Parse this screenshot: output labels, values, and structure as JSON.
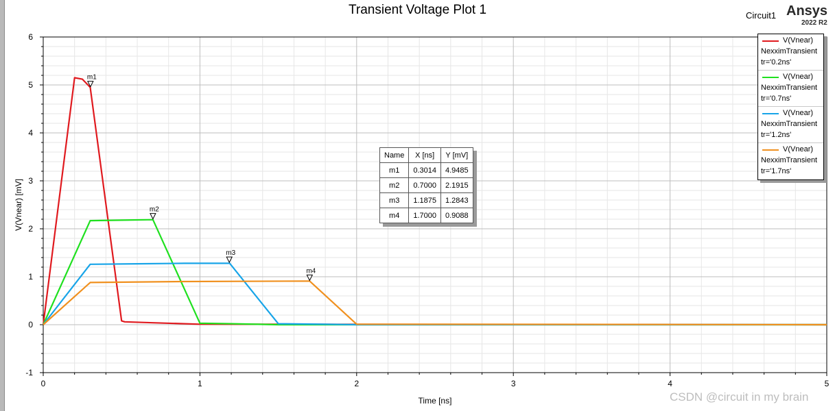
{
  "app": {
    "circuit_label": "Circuit1",
    "brand": "Ansys",
    "version": "2022 R2",
    "watermark": "CSDN @circuit in my brain"
  },
  "chart_data": {
    "type": "line",
    "title": "Transient Voltage Plot 1",
    "xlabel": "Time [ns]",
    "ylabel": "V(Vnear) [mV]",
    "xlim": [
      0,
      5
    ],
    "ylim": [
      -1,
      6
    ],
    "xticks": [
      "0",
      "1",
      "2",
      "3",
      "4",
      "5"
    ],
    "yticks": [
      "-1",
      "0",
      "1",
      "2",
      "3",
      "4",
      "5",
      "6"
    ],
    "grid": true,
    "legend_position": "top-right",
    "series": [
      {
        "legend": [
          "V(Vnear)",
          "NexximTransient",
          "tr='0.2ns'"
        ],
        "color": "#e0191e",
        "x": [
          0,
          0.2,
          0.25,
          0.3,
          0.5,
          0.52,
          0.7,
          1.0,
          5.0
        ],
        "y": [
          0,
          5.15,
          5.12,
          4.95,
          0.08,
          0.06,
          0.04,
          0.01,
          0
        ]
      },
      {
        "legend": [
          "V(Vnear)",
          "NexximTransient",
          "tr='0.7ns'"
        ],
        "color": "#1fe01f",
        "x": [
          0,
          0.3,
          0.5,
          0.7,
          1.0,
          1.2,
          1.5,
          5.0
        ],
        "y": [
          0,
          2.17,
          2.18,
          2.19,
          0.03,
          0.02,
          0.0,
          0
        ]
      },
      {
        "legend": [
          "V(Vnear)",
          "NexximTransient",
          "tr='1.2ns'"
        ],
        "color": "#17a4e8",
        "x": [
          0,
          0.3,
          0.6,
          0.9,
          1.19,
          1.5,
          1.8,
          2.0,
          5.0
        ],
        "y": [
          0,
          1.26,
          1.27,
          1.28,
          1.28,
          0.02,
          0.01,
          0.0,
          0
        ]
      },
      {
        "legend": [
          "V(Vnear)",
          "NexximTransient",
          "tr='1.7ns'"
        ],
        "color": "#f0901e",
        "x": [
          0,
          0.3,
          0.9,
          1.7,
          2.0,
          2.2,
          5.0
        ],
        "y": [
          0,
          0.88,
          0.9,
          0.91,
          0.01,
          0.01,
          0
        ]
      }
    ],
    "markers": [
      {
        "name": "m1",
        "x": 0.3014,
        "y": 4.9485,
        "x_label": "0.3014",
        "y_label": "4.9485"
      },
      {
        "name": "m2",
        "x": 0.7,
        "y": 2.1915,
        "x_label": "0.7000",
        "y_label": "2.1915"
      },
      {
        "name": "m3",
        "x": 1.1875,
        "y": 1.2843,
        "x_label": "1.1875",
        "y_label": "1.2843"
      },
      {
        "name": "m4",
        "x": 1.7,
        "y": 0.9088,
        "x_label": "1.7000",
        "y_label": "0.9088"
      }
    ],
    "marker_table": {
      "headers": [
        "Name",
        "X [ns]",
        "Y [mV]"
      ]
    }
  }
}
